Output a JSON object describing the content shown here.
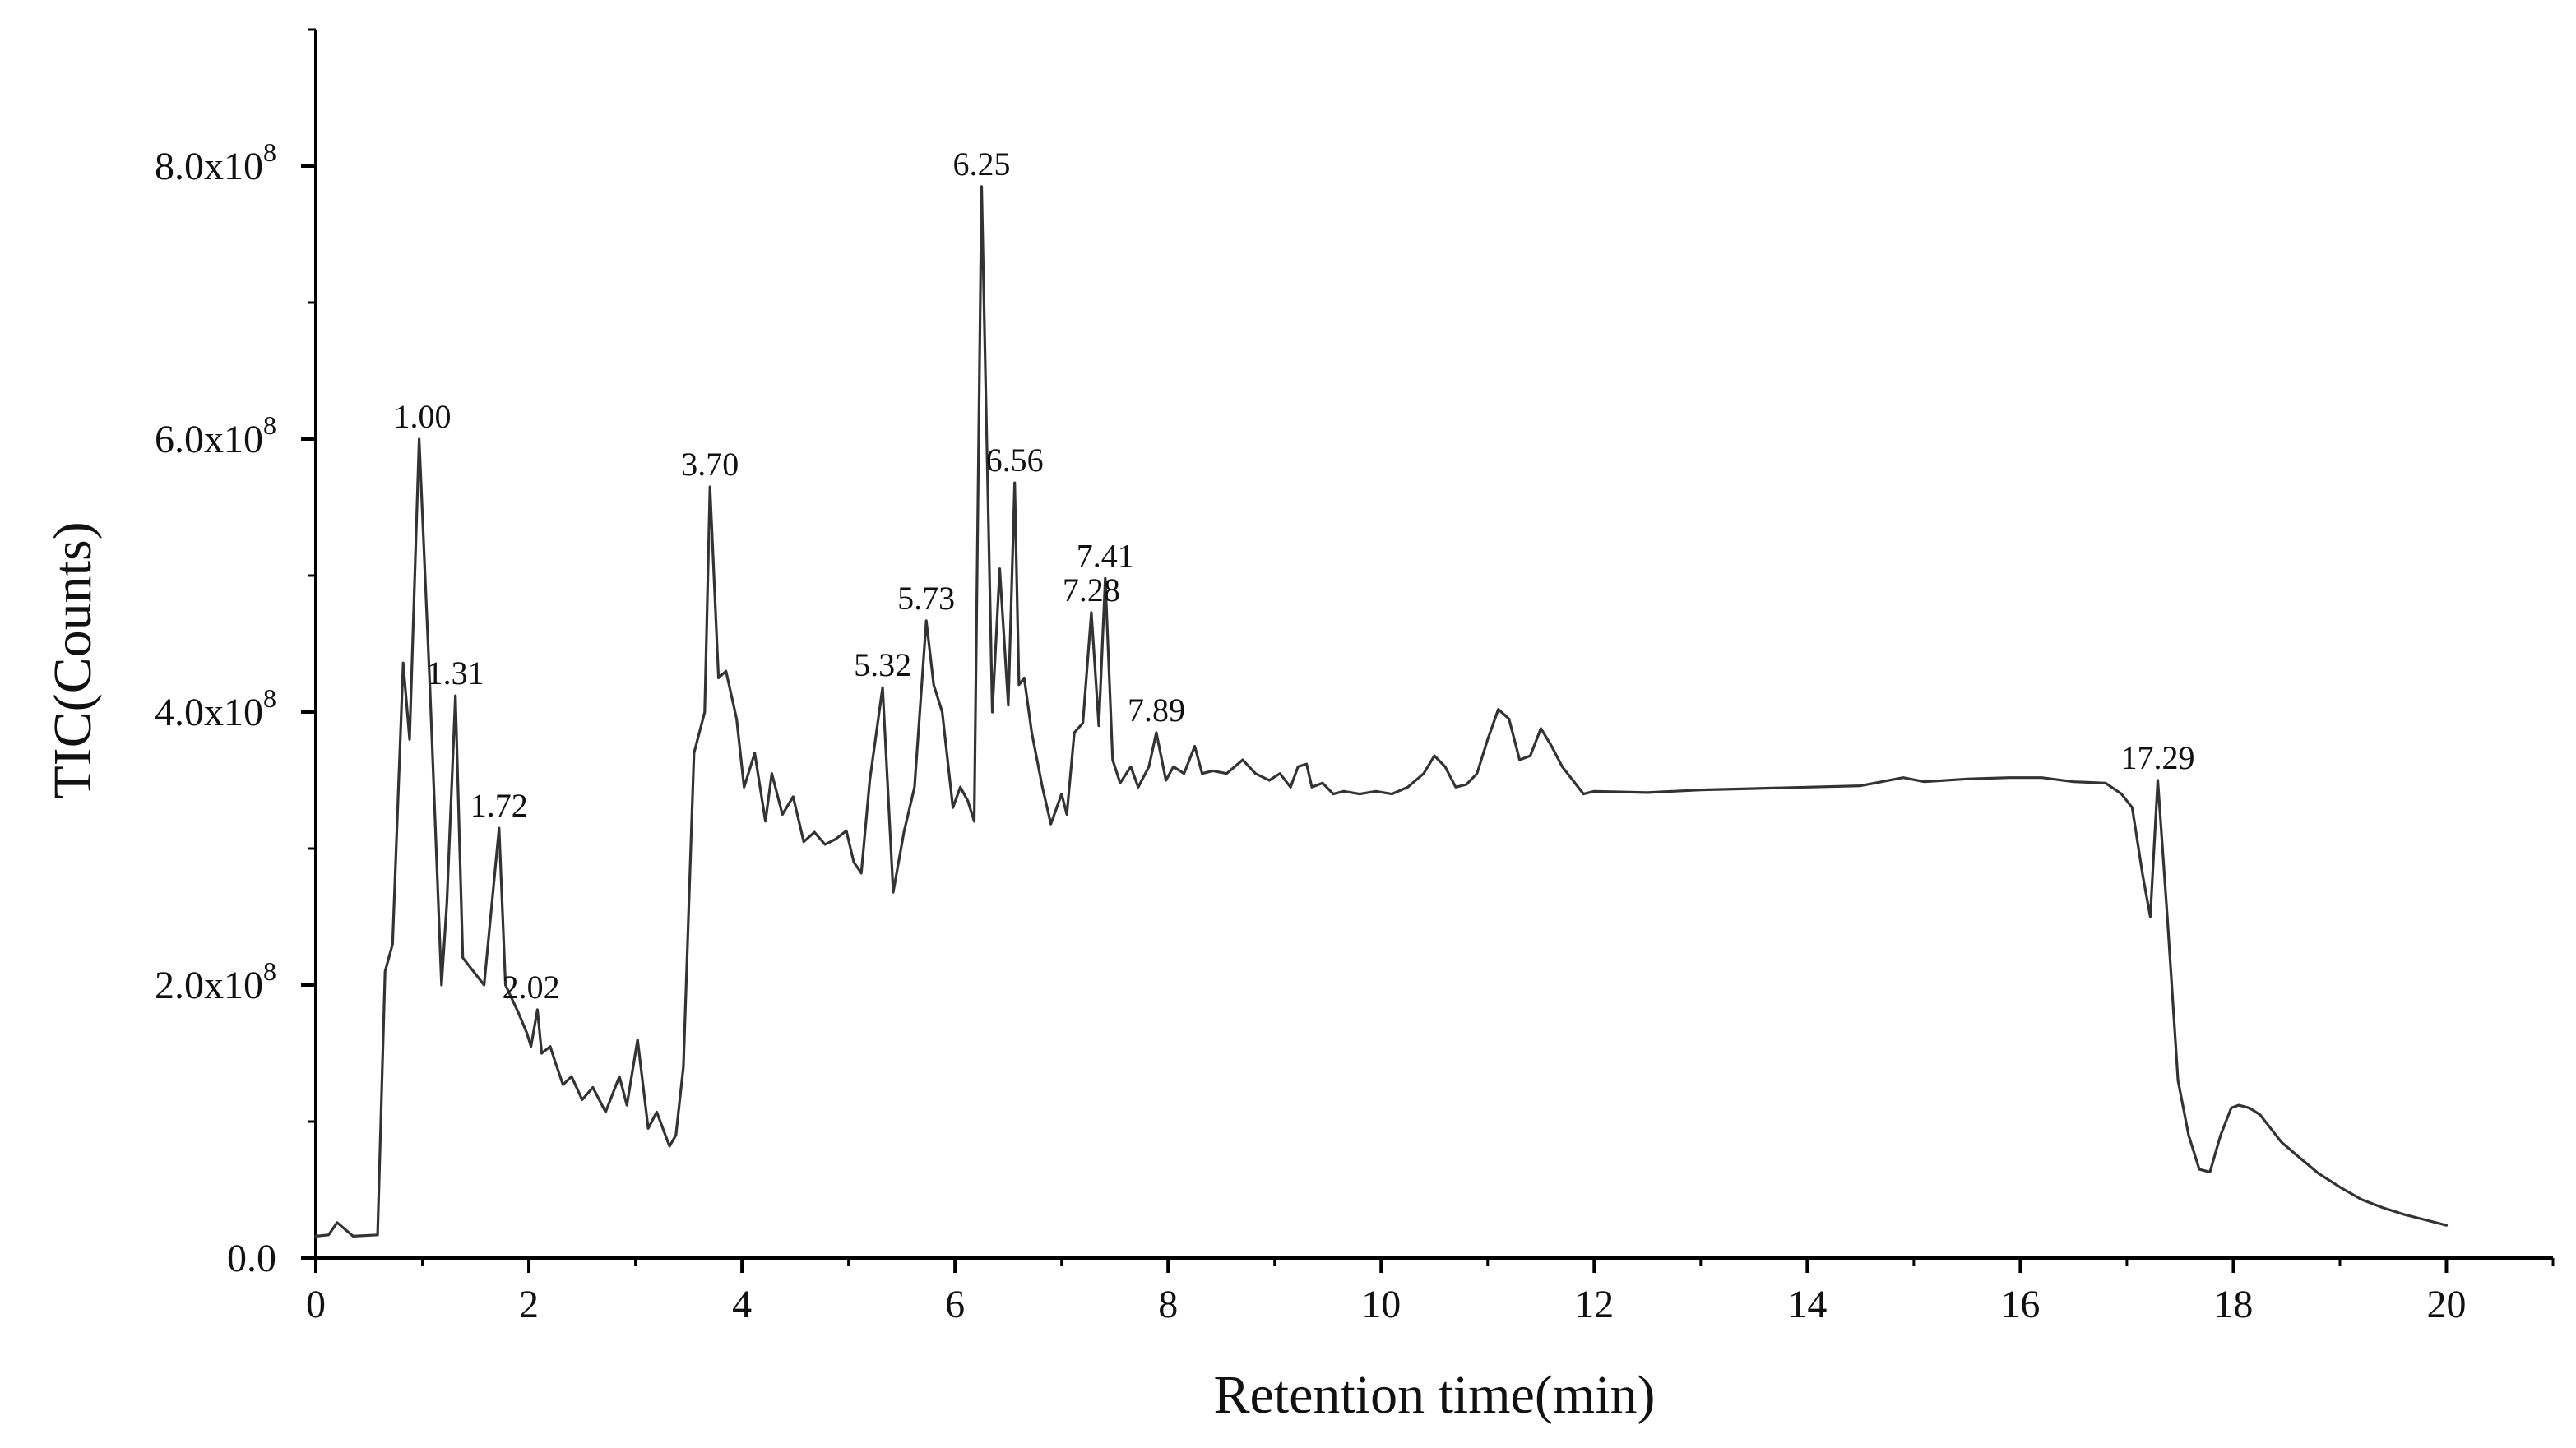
{
  "chart_data": {
    "type": "line",
    "title": "",
    "xlabel": "Retention time(min)",
    "ylabel": "TIC(Counts)",
    "xlim": [
      0,
      21
    ],
    "ylim": [
      0,
      900000000
    ],
    "grid": false,
    "line_color": "#333333",
    "x_ticks": [
      {
        "value": 0,
        "label": "0"
      },
      {
        "value": 2,
        "label": "2"
      },
      {
        "value": 4,
        "label": "4"
      },
      {
        "value": 6,
        "label": "6"
      },
      {
        "value": 8,
        "label": "8"
      },
      {
        "value": 10,
        "label": "10"
      },
      {
        "value": 12,
        "label": "12"
      },
      {
        "value": 14,
        "label": "14"
      },
      {
        "value": 16,
        "label": "16"
      },
      {
        "value": 18,
        "label": "18"
      },
      {
        "value": 20,
        "label": "20"
      }
    ],
    "y_ticks": [
      {
        "value": 0,
        "label": "0.0"
      },
      {
        "value": 200000000,
        "label": "2.0x10",
        "exp": "8"
      },
      {
        "value": 400000000,
        "label": "4.0x10",
        "exp": "8"
      },
      {
        "value": 600000000,
        "label": "6.0x10",
        "exp": "8"
      },
      {
        "value": 800000000,
        "label": "8.0x10",
        "exp": "8"
      }
    ],
    "annotations": [
      {
        "text": "1.00",
        "x": 1.0,
        "y": 600000000
      },
      {
        "text": "1.31",
        "x": 1.31,
        "y": 412000000
      },
      {
        "text": "1.72",
        "x": 1.72,
        "y": 315000000
      },
      {
        "text": "2.02",
        "x": 2.02,
        "y": 182000000
      },
      {
        "text": "3.70",
        "x": 3.7,
        "y": 565000000
      },
      {
        "text": "5.32",
        "x": 5.32,
        "y": 418000000
      },
      {
        "text": "5.73",
        "x": 5.73,
        "y": 467000000
      },
      {
        "text": "6.25",
        "x": 6.25,
        "y": 785000000
      },
      {
        "text": "6.56",
        "x": 6.56,
        "y": 568000000
      },
      {
        "text": "7.28",
        "x": 7.28,
        "y": 473000000
      },
      {
        "text": "7.41",
        "x": 7.41,
        "y": 498000000
      },
      {
        "text": "7.89",
        "x": 7.89,
        "y": 385000000
      },
      {
        "text": "17.29",
        "x": 17.29,
        "y": 350000000
      }
    ],
    "series": [
      {
        "x": [
          0,
          0.12,
          0.2,
          0.35,
          0.58,
          0.65,
          0.72,
          0.82,
          0.88,
          0.97,
          1.07,
          1.18,
          1.23,
          1.31,
          1.38,
          1.58,
          1.72,
          1.78,
          1.9,
          1.98,
          2.02,
          2.08,
          2.12,
          2.2,
          2.25,
          2.32,
          2.4,
          2.5,
          2.6,
          2.72,
          2.85,
          2.92,
          3.02,
          3.12,
          3.2,
          3.32,
          3.38,
          3.45,
          3.55,
          3.65,
          3.7,
          3.78,
          3.85,
          3.95,
          4.02,
          4.12,
          4.22,
          4.28,
          4.38,
          4.48,
          4.58,
          4.68,
          4.78,
          4.88,
          4.98,
          5.05,
          5.12,
          5.2,
          5.32,
          5.42,
          5.52,
          5.62,
          5.73,
          5.8,
          5.88,
          5.98,
          6.05,
          6.12,
          6.18,
          6.25,
          6.35,
          6.42,
          6.5,
          6.56,
          6.6,
          6.65,
          6.72,
          6.82,
          6.9,
          7.0,
          7.05,
          7.12,
          7.2,
          7.28,
          7.35,
          7.41,
          7.48,
          7.55,
          7.65,
          7.72,
          7.82,
          7.89,
          7.98,
          8.05,
          8.15,
          8.25,
          8.32,
          8.42,
          8.55,
          8.7,
          8.82,
          8.95,
          9.05,
          9.15,
          9.22,
          9.3,
          9.35,
          9.45,
          9.55,
          9.65,
          9.8,
          9.95,
          10.1,
          10.25,
          10.4,
          10.5,
          10.6,
          10.7,
          10.8,
          10.9,
          11.0,
          11.1,
          11.2,
          11.3,
          11.4,
          11.5,
          11.6,
          11.7,
          11.8,
          11.9,
          12.0,
          12.5,
          13.0,
          13.5,
          14.0,
          14.5,
          14.9,
          15.1,
          15.5,
          15.9,
          16.2,
          16.5,
          16.8,
          16.95,
          17.05,
          17.15,
          17.22,
          17.29,
          17.38,
          17.48,
          17.58,
          17.68,
          17.78,
          17.88,
          17.98,
          18.05,
          18.15,
          18.25,
          18.35,
          18.45,
          18.6,
          18.8,
          19.0,
          19.2,
          19.4,
          19.6,
          19.8,
          20.0
        ],
        "values": [
          16000000,
          17000000,
          26000000,
          16000000,
          17000000,
          210000000,
          230000000,
          436000000,
          380000000,
          600000000,
          420000000,
          200000000,
          260000000,
          412000000,
          220000000,
          200000000,
          315000000,
          200000000,
          180000000,
          165000000,
          155000000,
          182000000,
          150000000,
          155000000,
          143000000,
          127000000,
          133000000,
          116000000,
          125000000,
          107000000,
          133000000,
          112000000,
          160000000,
          95000000,
          107000000,
          82000000,
          90000000,
          140000000,
          370000000,
          400000000,
          565000000,
          425000000,
          430000000,
          395000000,
          345000000,
          370000000,
          320000000,
          355000000,
          325000000,
          338000000,
          305000000,
          312000000,
          303000000,
          307000000,
          313000000,
          290000000,
          282000000,
          350000000,
          418000000,
          268000000,
          312000000,
          345000000,
          467000000,
          420000000,
          400000000,
          330000000,
          345000000,
          335000000,
          320000000,
          785000000,
          400000000,
          505000000,
          405000000,
          568000000,
          420000000,
          425000000,
          385000000,
          345000000,
          318000000,
          340000000,
          325000000,
          385000000,
          392000000,
          473000000,
          390000000,
          498000000,
          365000000,
          348000000,
          360000000,
          345000000,
          360000000,
          385000000,
          350000000,
          360000000,
          355000000,
          375000000,
          355000000,
          357000000,
          355000000,
          365000000,
          355000000,
          350000000,
          355000000,
          345000000,
          360000000,
          362000000,
          345000000,
          348000000,
          340000000,
          342000000,
          340000000,
          342000000,
          340000000,
          345000000,
          355000000,
          368000000,
          360000000,
          345000000,
          347000000,
          355000000,
          380000000,
          402000000,
          395000000,
          365000000,
          368000000,
          388000000,
          375000000,
          360000000,
          350000000,
          340000000,
          342000000,
          341000000,
          343000000,
          344000000,
          345000000,
          346000000,
          352000000,
          349000000,
          351000000,
          352000000,
          352000000,
          349000000,
          348000000,
          340000000,
          330000000,
          280000000,
          250000000,
          350000000,
          250000000,
          130000000,
          90000000,
          65000000,
          63000000,
          90000000,
          110000000,
          112000000,
          110000000,
          105000000,
          95000000,
          85000000,
          75000000,
          62000000,
          52000000,
          43000000,
          37000000,
          32000000,
          28000000,
          24000000
        ]
      }
    ]
  }
}
